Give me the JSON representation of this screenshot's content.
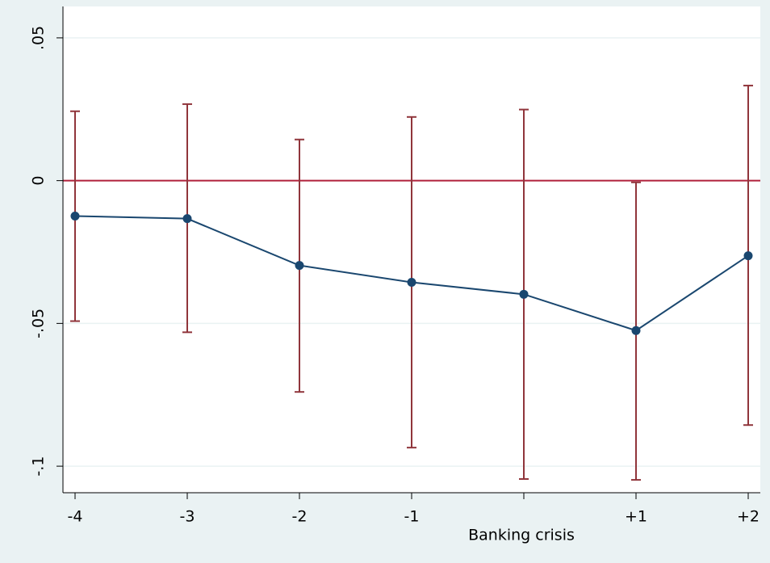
{
  "chart_data": {
    "type": "line",
    "x_label": "Banking crisis",
    "categories": [
      "-4",
      "-3",
      "-2",
      "-1",
      null,
      "+1",
      "+2"
    ],
    "values": [
      -0.0124,
      -0.0133,
      -0.0297,
      -0.0356,
      -0.0398,
      -0.0525,
      -0.0263
    ],
    "ci_low": [
      -0.0492,
      -0.0531,
      -0.074,
      -0.0935,
      -0.1045,
      -0.1048,
      -0.0856
    ],
    "ci_high": [
      0.0243,
      0.0268,
      0.0144,
      0.0223,
      0.0249,
      -0.0006,
      0.0333
    ],
    "color": "#1a476f",
    "ci_color": "#90353b",
    "yline": 0,
    "yline_color": "#b0203b",
    "ylim": [
      -0.1093,
      0.061
    ],
    "yticks": [
      {
        "value": -0.1,
        "label": "-.1"
      },
      {
        "value": -0.05,
        "label": "-.05"
      },
      0,
      {
        "value": 0.05,
        "label": ".05"
      }
    ],
    "grid": true
  }
}
